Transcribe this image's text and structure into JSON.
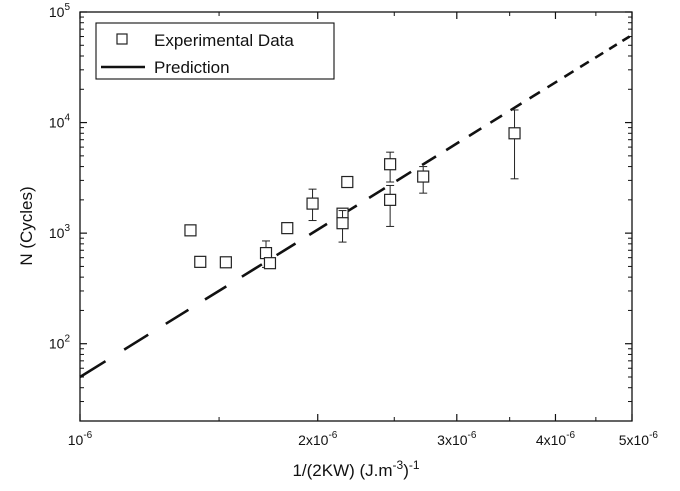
{
  "chart_data": {
    "type": "scatter",
    "xlabel": "1/(2KW) (J.m-3)-1",
    "ylabel": "N (Cycles)",
    "x_scale": "log",
    "y_scale": "log",
    "xlim": [
      1e-06,
      5e-06
    ],
    "ylim": [
      20,
      100000
    ],
    "x_ticks": [
      {
        "value": 1e-06,
        "mantissa": "10",
        "exponent": "-6"
      },
      {
        "value": 2e-06,
        "mantissa": "2x10",
        "exponent": "-6"
      },
      {
        "value": 3e-06,
        "mantissa": "3x10",
        "exponent": "-6"
      },
      {
        "value": 4e-06,
        "mantissa": "4x10",
        "exponent": "-6"
      },
      {
        "value": 5e-06,
        "mantissa": "5x10",
        "exponent": "-6"
      }
    ],
    "y_ticks": [
      {
        "value": 100,
        "mantissa": "10",
        "exponent": "2"
      },
      {
        "value": 1000,
        "mantissa": "10",
        "exponent": "3"
      },
      {
        "value": 10000,
        "mantissa": "10",
        "exponent": "4"
      },
      {
        "value": 100000,
        "mantissa": "10",
        "exponent": "5"
      }
    ],
    "legend": {
      "placement": "top-left",
      "entries": [
        "Experimental Data",
        "Prediction"
      ]
    },
    "series": [
      {
        "name": "Experimental Data",
        "marker": "open-square",
        "points": [
          {
            "x": 1.38e-06,
            "y": 1060,
            "err_low": 960,
            "err_high": 1150
          },
          {
            "x": 1.42e-06,
            "y": 550
          },
          {
            "x": 1.53e-06,
            "y": 545
          },
          {
            "x": 1.72e-06,
            "y": 660,
            "err_low": 490,
            "err_high": 850
          },
          {
            "x": 1.74e-06,
            "y": 535
          },
          {
            "x": 1.83e-06,
            "y": 1110
          },
          {
            "x": 1.97e-06,
            "y": 1850,
            "err_low": 1300,
            "err_high": 2500
          },
          {
            "x": 2.15e-06,
            "y": 1500
          },
          {
            "x": 2.15e-06,
            "y": 1230,
            "err_low": 830,
            "err_high": 1600
          },
          {
            "x": 2.18e-06,
            "y": 2900
          },
          {
            "x": 2.47e-06,
            "y": 4200,
            "err_low": 2900,
            "err_high": 5400
          },
          {
            "x": 2.47e-06,
            "y": 2000,
            "err_low": 1150,
            "err_high": 2700
          },
          {
            "x": 2.72e-06,
            "y": 3250,
            "err_low": 2300,
            "err_high": 4000
          },
          {
            "x": 3.55e-06,
            "y": 8000,
            "err_low": 3100,
            "err_high": 13000
          }
        ]
      },
      {
        "name": "Prediction",
        "line_style": "dashed",
        "color": "#111111",
        "x": [
          1e-06,
          5e-06
        ],
        "y": [
          50,
          62000
        ]
      }
    ],
    "colors": {
      "axis": "#111111",
      "marker": "#222222",
      "line": "#111111"
    }
  }
}
